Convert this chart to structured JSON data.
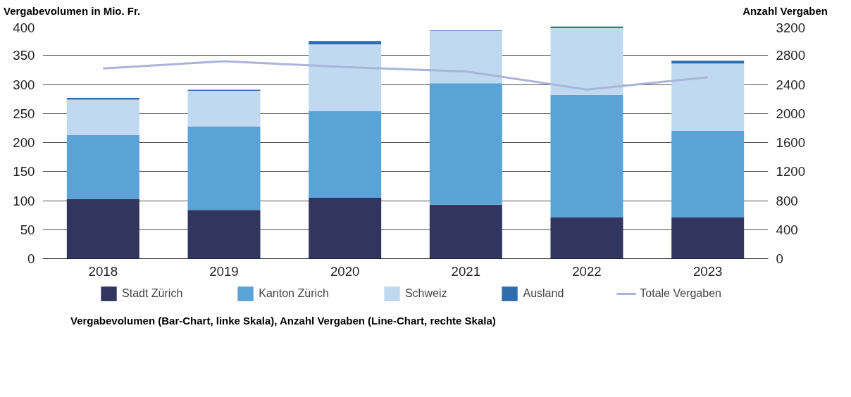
{
  "chart_data": {
    "type": "bar",
    "stacked": true,
    "ylabel": "Vergabevolumen in Mio. Fr.",
    "y2label": "Anzahl Vergaben",
    "categories": [
      "2018",
      "2019",
      "2020",
      "2021",
      "2022",
      "2023"
    ],
    "series": [
      {
        "name": "Stadt Zürich",
        "color": "#32365f",
        "values": [
          103,
          84,
          105,
          93,
          71,
          71
        ]
      },
      {
        "name": "Kanton Zürich",
        "color": "#5ba3d6",
        "values": [
          110,
          144,
          149,
          209,
          211,
          149
        ]
      },
      {
        "name": "Schweiz",
        "color": "#c0d9f0",
        "values": [
          61,
          61,
          115,
          90,
          115,
          116
        ]
      },
      {
        "name": "Ausland",
        "color": "#2f6daf",
        "values": [
          3,
          2,
          6,
          1,
          3,
          5
        ]
      },
      {
        "name": "Totale Vergaben",
        "type": "line",
        "axis": "y2",
        "color": "#a9b4da",
        "values": [
          2620,
          2720,
          2640,
          2580,
          2330,
          2500
        ]
      }
    ],
    "ylim": [
      0,
      400
    ],
    "yticks": [
      0,
      50,
      100,
      150,
      200,
      250,
      300,
      350,
      400
    ],
    "y2lim": [
      0,
      3200
    ],
    "y2ticks": [
      0,
      400,
      800,
      1200,
      1600,
      2000,
      2400,
      2800,
      3200
    ],
    "grid": "y",
    "legend": "bottom",
    "annotations": [
      "Vergabevolumen (Bar-Chart, linke Skala), Anzahl Vergaben (Line-Chart, rechte Skala)"
    ]
  }
}
